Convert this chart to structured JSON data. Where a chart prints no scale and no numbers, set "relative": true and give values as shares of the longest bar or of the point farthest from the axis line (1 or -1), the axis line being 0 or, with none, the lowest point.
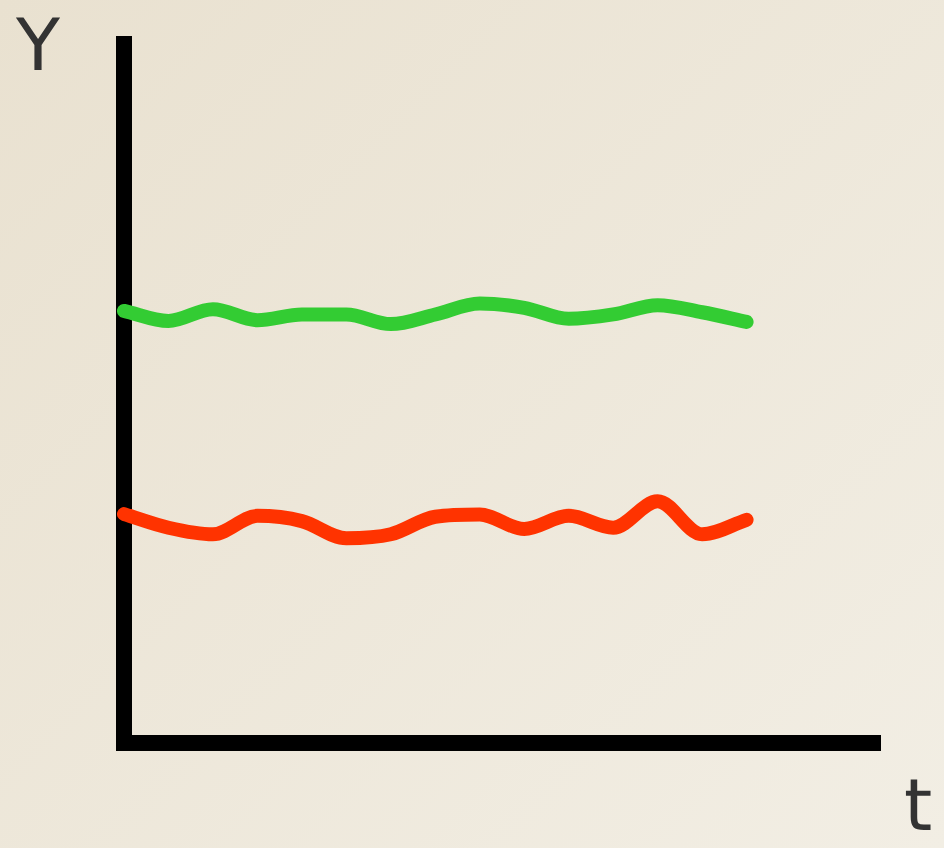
{
  "chart_data": {
    "type": "line",
    "relative": true,
    "xlabel": "t",
    "ylabel": "Y",
    "grid": false,
    "legend": false,
    "marker": "none",
    "line_style": "solid",
    "categories": [
      null,
      null,
      null,
      null,
      null,
      null,
      null,
      null,
      null,
      null,
      null,
      null,
      null,
      null,
      null,
      null,
      null,
      null
    ],
    "series": [
      {
        "color": "#33cc33",
        "values": [
          0.983,
          0.96,
          0.987,
          0.962,
          0.975,
          0.975,
          0.953,
          0.975,
          1,
          0.99,
          0.965,
          0.975,
          0.996,
          0.98,
          0.958,
          null,
          null,
          null
        ]
      },
      {
        "color": "#ff3300",
        "values": [
          0.521,
          0.49,
          0.475,
          0.517,
          0.505,
          0.466,
          0.475,
          0.515,
          0.52,
          0.487,
          0.517,
          0.49,
          0.55,
          0.475,
          0.508,
          null,
          null,
          null
        ]
      }
    ]
  }
}
